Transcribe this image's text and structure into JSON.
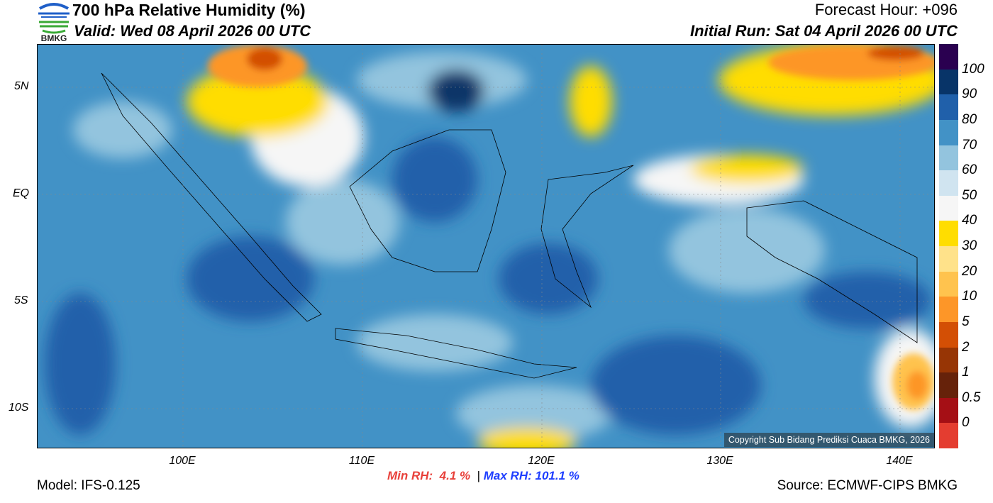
{
  "header": {
    "logo_text": "BMKG",
    "title": "700 hPa Relative Humidity (%)",
    "valid": "Valid: Wed 08 April 2026 00 UTC",
    "forecast_hour": "Forecast Hour: +096",
    "initial_run": "Initial Run: Sat 04 April 2026 00 UTC"
  },
  "map": {
    "lat_labels": [
      "5N",
      "EQ",
      "5S",
      "10S"
    ],
    "lon_labels": [
      "100E",
      "110E",
      "120E",
      "130E",
      "140E"
    ],
    "copyright": "Copyright Sub Bidang Prediksi Cuaca BMKG, 2026"
  },
  "colorbar": {
    "labels": [
      "100",
      "90",
      "80",
      "70",
      "60",
      "50",
      "40",
      "30",
      "20",
      "10",
      "5",
      "2",
      "1",
      "0.5",
      "0"
    ],
    "colors": [
      "#2a0050",
      "#083468",
      "#2060aa",
      "#4292c6",
      "#93c4de",
      "#d0e4f0",
      "#f6f6f6",
      "#ffdd00",
      "#ffe28a",
      "#ffc34e",
      "#fd9628",
      "#d34f05",
      "#973505",
      "#66220a",
      "#a50f15",
      "#e43d30"
    ]
  },
  "stats": {
    "min_label": "Min RH:",
    "min_value": "4.1 %",
    "separator": "|",
    "max_label": "Max RH:",
    "max_value": "101.1 %",
    "min_color": "#e8403a",
    "max_color": "#1f3fff"
  },
  "footer": {
    "model": "Model: IFS-0.125",
    "source": "Source: ECMWF-CIPS BMKG"
  }
}
